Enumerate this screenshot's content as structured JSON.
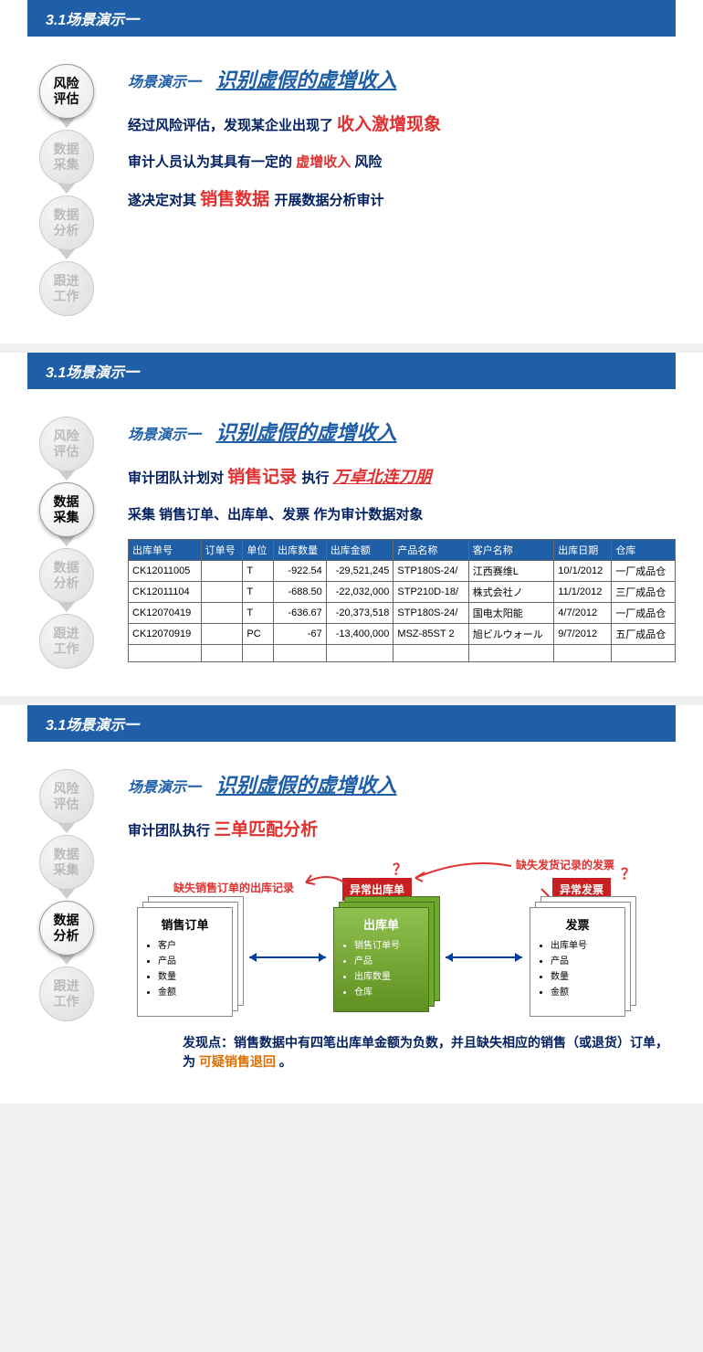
{
  "header": "3.1场景演示一",
  "titlePrefix": "场景演示一",
  "titleMain": "识别虚假的虚增收入",
  "steps": [
    "风险\n评估",
    "数据\n采集",
    "数据\n分析",
    "跟进\n工作"
  ],
  "slide1": {
    "active": 0,
    "l1a": "经过风险评估，发现某企业出现了 ",
    "l1b": "收入激增现象",
    "l2a": "审计人员认为其具有一定的",
    "l2b": "虚增收入",
    "l2c": "风险",
    "l3a": "遂决定对其 ",
    "l3b": "销售数据 ",
    "l3c": "开展数据分析审计"
  },
  "slide2": {
    "active": 1,
    "l1a": "审计团队计划对 ",
    "l1b": "销售记录 ",
    "l1c": "执行 ",
    "l1d": "万卓北连刀朋",
    "l2": "采集 销售订单、出库单、发票 作为审计数据对象",
    "table": {
      "headers": [
        "出库单号",
        "订单号",
        "单位",
        "出库数量",
        "出库金额",
        "产品名称",
        "客户名称",
        "出库日期",
        "仓库"
      ],
      "rows": [
        [
          "CK12011005",
          "",
          "T",
          "-922.54",
          "-29,521,245",
          "STP180S-24/",
          "江西赛维L",
          "10/1/2012",
          "一厂成品仓"
        ],
        [
          "CK12011104",
          "",
          "T",
          "-688.50",
          "-22,032,000",
          "STP210D-18/",
          "株式会社ノ",
          "11/1/2012",
          "三厂成品仓"
        ],
        [
          "CK12070419",
          "",
          "T",
          "-636.67",
          "-20,373,518",
          "STP180S-24/",
          "国电太阳能",
          "4/7/2012",
          "一厂成品仓"
        ],
        [
          "CK12070919",
          "",
          "PC",
          "-67",
          "-13,400,000",
          "MSZ-85ST 2",
          "旭ビルウォール",
          "9/7/2012",
          "五厂成品仓"
        ]
      ]
    }
  },
  "slide3": {
    "active": 2,
    "l1a": "审计团队执行 ",
    "l1b": "三单匹配分析",
    "anno1": "缺失销售订单的出库记录",
    "anno2": "缺失发货记录的发票",
    "q": "？",
    "badge1": "异常出库单",
    "badge2": "异常发票",
    "doc1": {
      "title": "销售订单",
      "items": [
        "客户",
        "产品",
        "数量",
        "金额"
      ]
    },
    "doc2": {
      "title": "出库单",
      "items": [
        "销售订单号",
        "产品",
        "出库数量",
        "仓库"
      ]
    },
    "doc3": {
      "title": "发票",
      "items": [
        "出库单号",
        "产品",
        "数量",
        "金额"
      ]
    },
    "findA": "发现点：销售数据中有四笔出库单金额为负数，并且缺失相应的销售（或退货）订单，为",
    "findB": "可疑销售退回",
    "findC": "。"
  },
  "colors": {
    "blue": "#1e5fa8",
    "navy": "#001f5f",
    "red": "#e03030",
    "orange": "#e07000",
    "green": "#6fa82e"
  }
}
